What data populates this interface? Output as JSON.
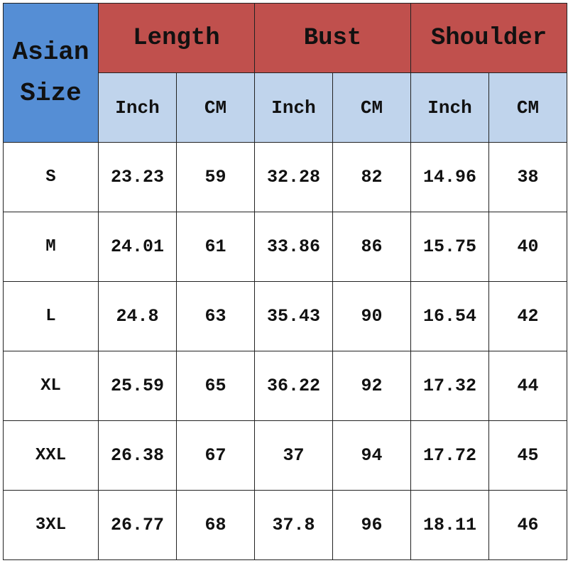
{
  "header": {
    "size_label_line1": "Asian",
    "size_label_line2": "Size",
    "groups": [
      "Length",
      "Bust",
      "Shoulder"
    ],
    "units": [
      "Inch",
      "CM",
      "Inch",
      "CM",
      "Inch",
      "CM"
    ]
  },
  "rows": [
    {
      "size": "S",
      "values": [
        "23.23",
        "59",
        "32.28",
        "82",
        "14.96",
        "38"
      ]
    },
    {
      "size": "M",
      "values": [
        "24.01",
        "61",
        "33.86",
        "86",
        "15.75",
        "40"
      ]
    },
    {
      "size": "L",
      "values": [
        "24.8",
        "63",
        "35.43",
        "90",
        "16.54",
        "42"
      ]
    },
    {
      "size": "XL",
      "values": [
        "25.59",
        "65",
        "36.22",
        "92",
        "17.32",
        "44"
      ]
    },
    {
      "size": "XXL",
      "values": [
        "26.38",
        "67",
        "37",
        "94",
        "17.72",
        "45"
      ]
    },
    {
      "size": "3XL",
      "values": [
        "26.77",
        "68",
        "37.8",
        "96",
        "18.11",
        "46"
      ]
    }
  ],
  "colors": {
    "corner": "#558ed5",
    "group_header": "#c0504d",
    "unit_header": "#c0d4ec"
  }
}
